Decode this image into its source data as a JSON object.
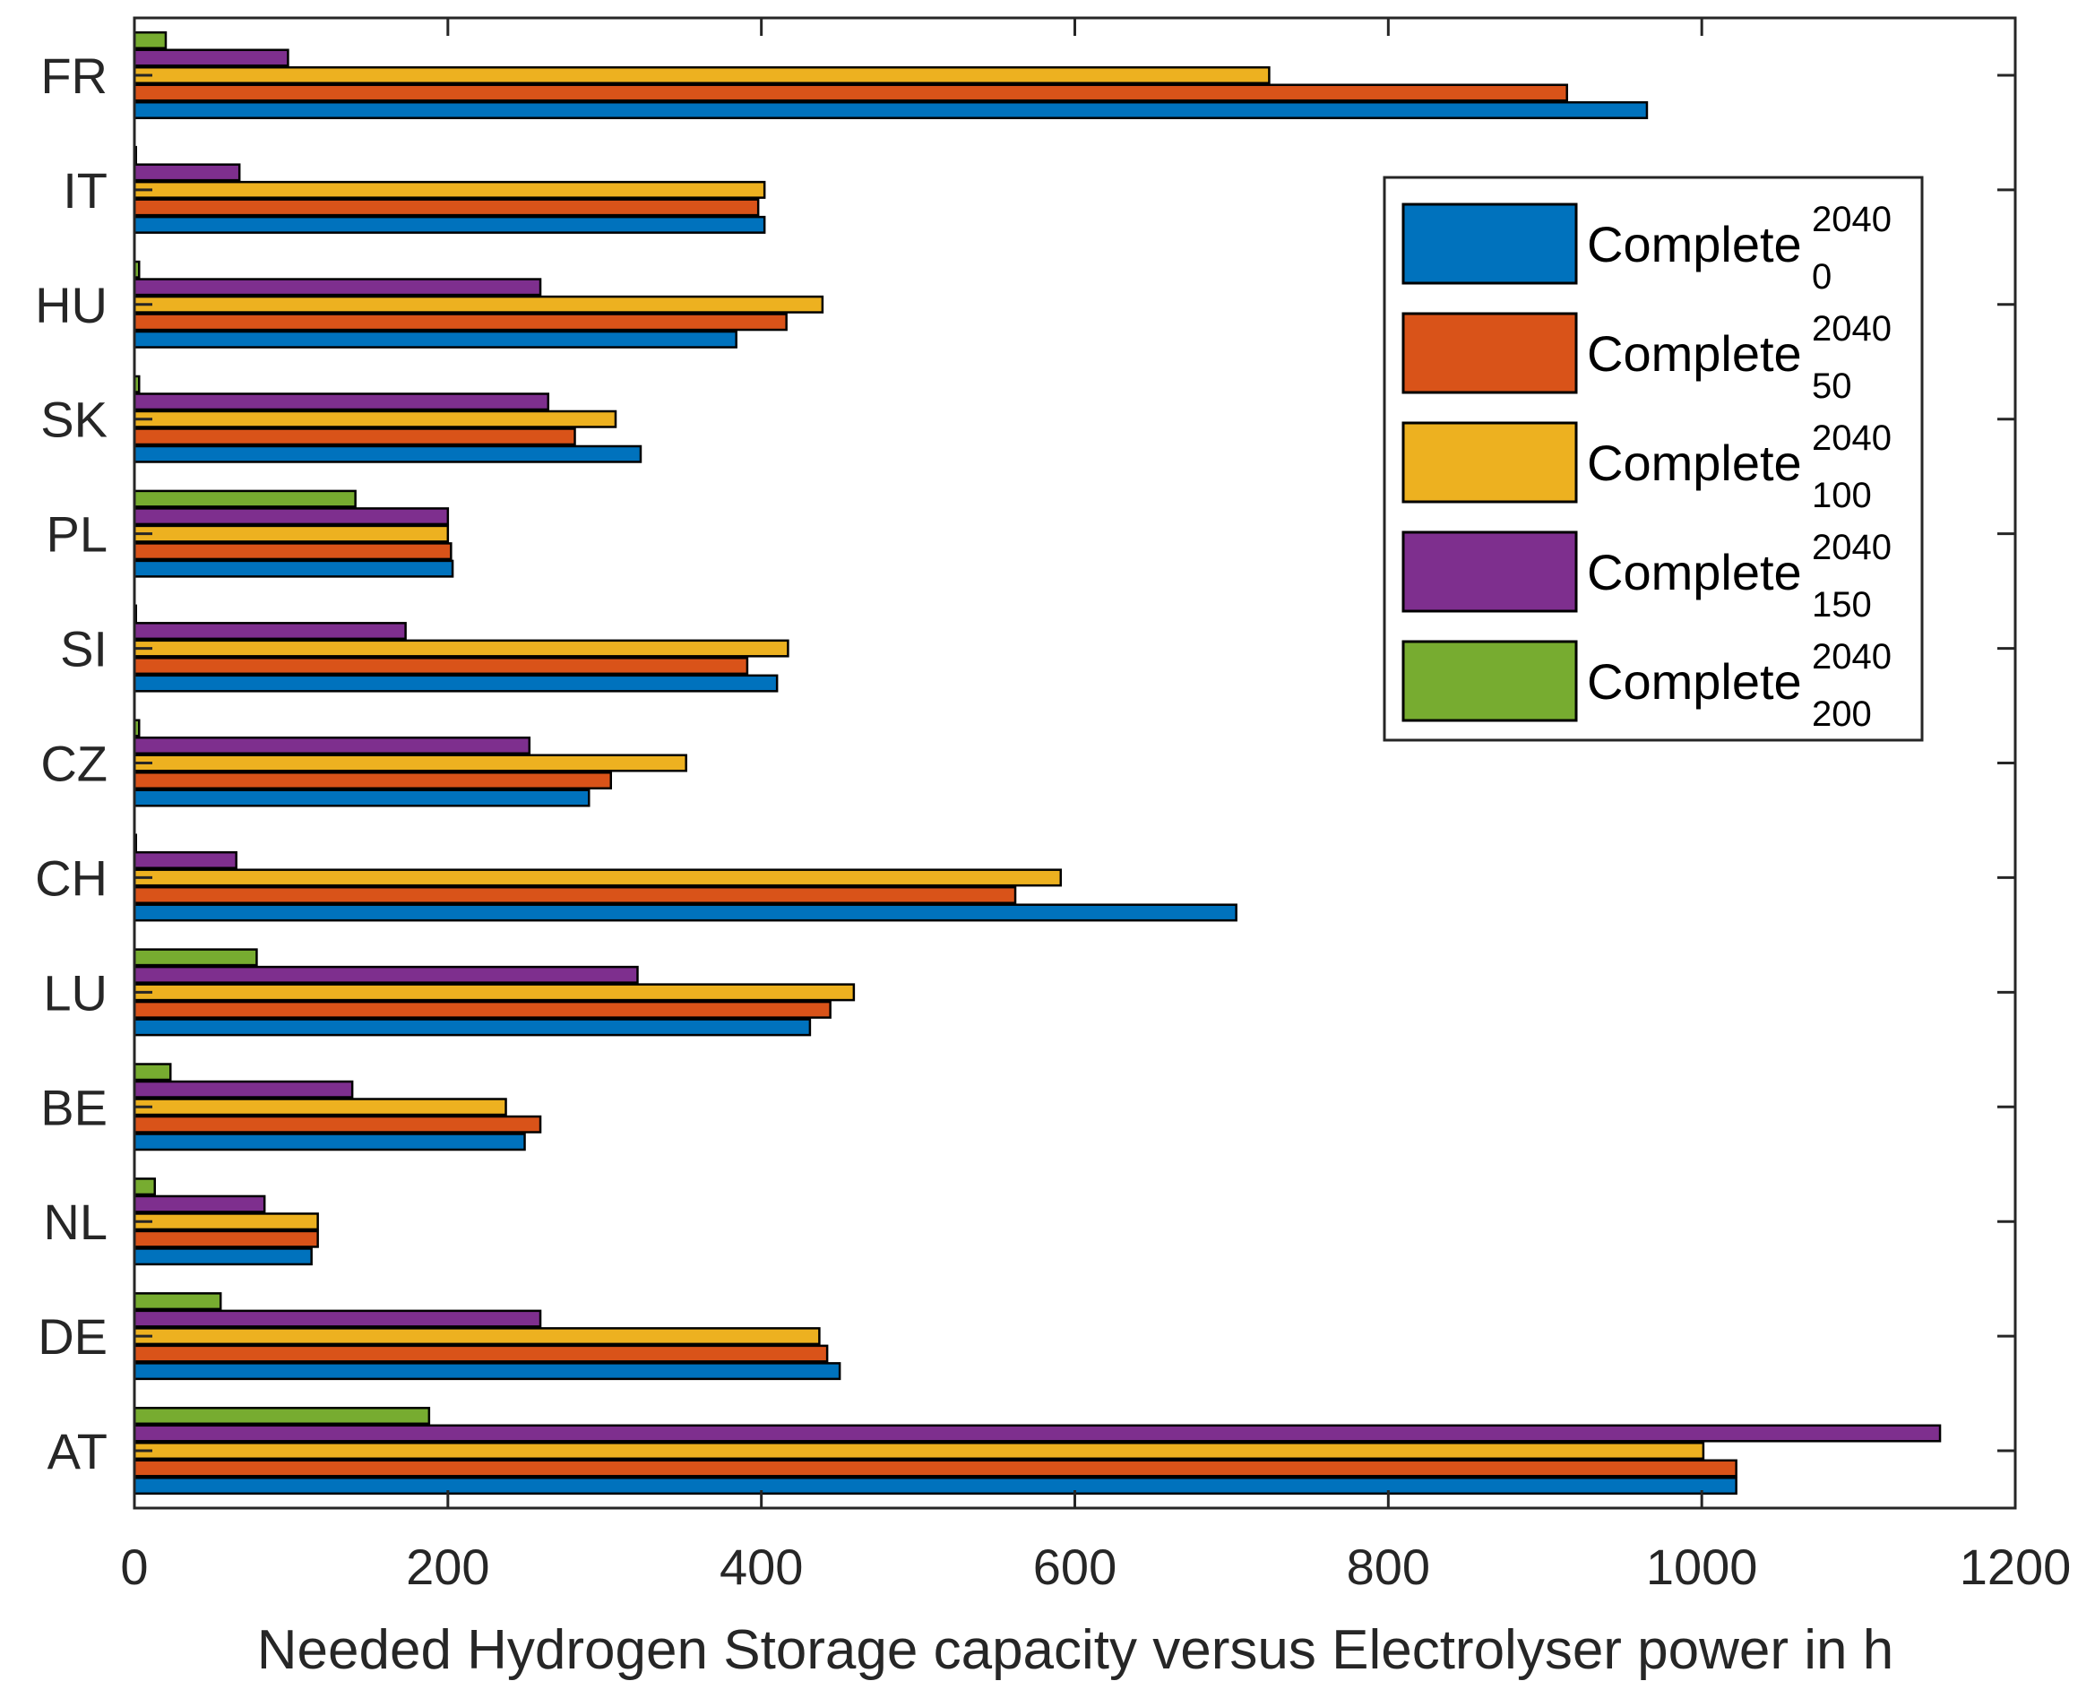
{
  "chart_data": {
    "type": "bar",
    "orientation": "horizontal",
    "xlabel": "Needed Hydrogen Storage capacity versus Electrolyser power in h",
    "ylabel": "",
    "xlim": [
      0,
      1200
    ],
    "xticks": [
      0,
      200,
      400,
      600,
      800,
      1000,
      1200
    ],
    "categories": [
      "FR",
      "IT",
      "HU",
      "SK",
      "PL",
      "SI",
      "CZ",
      "CH",
      "LU",
      "BE",
      "NL",
      "DE",
      "AT"
    ],
    "legend_position": "top-right",
    "series": [
      {
        "name": "Complete",
        "sup": "2040",
        "sub": "0",
        "color": "#0072BD",
        "values": [
          965,
          402,
          384,
          323,
          203,
          410,
          290,
          703,
          431,
          249,
          113,
          450,
          1022
        ]
      },
      {
        "name": "Complete",
        "sup": "2040",
        "sub": "50",
        "color": "#D95319",
        "values": [
          914,
          398,
          416,
          281,
          202,
          391,
          304,
          562,
          444,
          259,
          117,
          442,
          1022
        ]
      },
      {
        "name": "Complete",
        "sup": "2040",
        "sub": "100",
        "color": "#EDB120",
        "values": [
          724,
          402,
          439,
          307,
          200,
          417,
          352,
          591,
          459,
          237,
          117,
          437,
          1001
        ]
      },
      {
        "name": "Complete",
        "sup": "2040",
        "sub": "150",
        "color": "#7E2F8E",
        "values": [
          98,
          67,
          259,
          264,
          200,
          173,
          252,
          65,
          321,
          139,
          83,
          259,
          1152
        ]
      },
      {
        "name": "Complete",
        "sup": "2040",
        "sub": "200",
        "color": "#77AC30",
        "values": [
          20,
          1,
          3,
          3,
          141,
          1,
          3,
          1,
          78,
          23,
          13,
          55,
          188
        ]
      }
    ]
  }
}
